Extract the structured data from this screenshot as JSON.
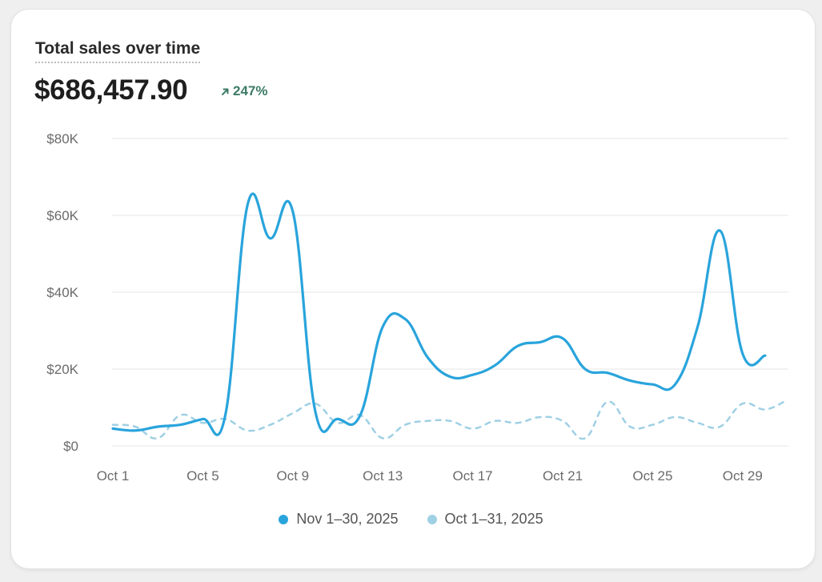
{
  "card": {
    "title": "Total sales over time",
    "total": "$686,457.90",
    "change": "247%",
    "change_icon": "arrow-up-right-icon"
  },
  "colors": {
    "current": "#29a4dc",
    "previous": "#9fd0e4",
    "grid": "#e6e6e6",
    "axis_text": "#6b6b6b",
    "change": "#3c7a66"
  },
  "chart_data": {
    "type": "line",
    "title": "Total sales over time",
    "x_ticks": [
      "Oct 1",
      "Oct 5",
      "Oct 9",
      "Oct 13",
      "Oct 17",
      "Oct 21",
      "Oct 25",
      "Oct 29"
    ],
    "y_ticks": [
      "$0",
      "$20K",
      "$40K",
      "$60K",
      "$80K"
    ],
    "ylim": [
      0,
      80000
    ],
    "grid": true,
    "legend_position": "bottom",
    "series": [
      {
        "name": "Nov 1–30, 2025",
        "style": "solid",
        "x": [
          1,
          2,
          3,
          4,
          5,
          6,
          7,
          8,
          9,
          10,
          11,
          12,
          13,
          14,
          15,
          16,
          17,
          18,
          19,
          20,
          21,
          22,
          23,
          24,
          25,
          26,
          27,
          28,
          29,
          30
        ],
        "values": [
          4500,
          4000,
          5000,
          5500,
          7000,
          8000,
          63000,
          54000,
          61000,
          9000,
          7000,
          8000,
          31000,
          33000,
          23000,
          18000,
          18500,
          21000,
          26000,
          27000,
          28000,
          20000,
          19000,
          17000,
          16000,
          16000,
          31000,
          56000,
          24000,
          23500
        ]
      },
      {
        "name": "Oct 1–31, 2025",
        "style": "dashed",
        "x": [
          1,
          2,
          3,
          4,
          5,
          6,
          7,
          8,
          9,
          10,
          11,
          12,
          13,
          14,
          15,
          16,
          17,
          18,
          19,
          20,
          21,
          22,
          23,
          24,
          25,
          26,
          27,
          28,
          29,
          30,
          31
        ],
        "values": [
          5500,
          5000,
          2000,
          8000,
          6000,
          7000,
          4000,
          5500,
          8500,
          11000,
          6000,
          8000,
          2000,
          5500,
          6500,
          6500,
          4500,
          6500,
          6000,
          7500,
          6500,
          2000,
          11500,
          5000,
          5500,
          7500,
          6000,
          5000,
          11000,
          9500,
          12000
        ]
      }
    ]
  }
}
